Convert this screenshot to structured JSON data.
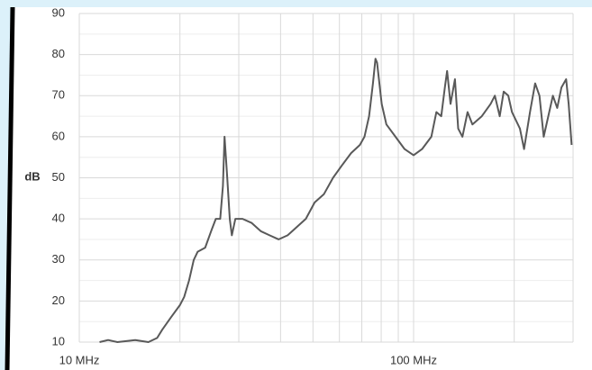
{
  "chart_data": {
    "type": "line",
    "x_scale": "log",
    "ylabel": "dB",
    "x": [
      11.5,
      12.2,
      13,
      14.7,
      16.1,
      17.1,
      17.7,
      18.8,
      20,
      20.6,
      21.3,
      22,
      22.6,
      23.8,
      24.8,
      25.6,
      26.4,
      26.9,
      27.2,
      27.7,
      28.2,
      28.6,
      29.3,
      30.8,
      32.8,
      34.9,
      37.1,
      39.5,
      42,
      44.7,
      47.6,
      50.6,
      53.9,
      57.4,
      61,
      65,
      69.1,
      71.3,
      73.6,
      75.6,
      76.9,
      77.8,
      80.3,
      82.9,
      88.3,
      94,
      100,
      106,
      113,
      117,
      121,
      124,
      126,
      129,
      133,
      136,
      140,
      145,
      150,
      160,
      170,
      175,
      181,
      186,
      192,
      197,
      208,
      214,
      223,
      231,
      238,
      245,
      253,
      261,
      269,
      277,
      286,
      291,
      297
    ],
    "series": [
      {
        "color": "#595959",
        "values": [
          10,
          10.5,
          10,
          10.5,
          10,
          11,
          13,
          16,
          19,
          21,
          25,
          30,
          32,
          33,
          37,
          40,
          40,
          48,
          60,
          50,
          40,
          36,
          40,
          40,
          39,
          37,
          36,
          35,
          36,
          38,
          40,
          44,
          46,
          50,
          53,
          56,
          58,
          60,
          65,
          73,
          79,
          78,
          68,
          63,
          60,
          57,
          55.5,
          57,
          60,
          66,
          65,
          72,
          76,
          68,
          74,
          62,
          60,
          66,
          63,
          65,
          68,
          70,
          65,
          71,
          70,
          66,
          62,
          57,
          66,
          73,
          70,
          60,
          65,
          70,
          67,
          72,
          74,
          68,
          58
        ]
      }
    ],
    "xlim": [
      10,
      300
    ],
    "xticks": [
      {
        "value": 10,
        "label": "10 MHz"
      },
      {
        "value": 100,
        "label": "100 MHz"
      }
    ],
    "x_minor_ticks": [
      20,
      30,
      40,
      50,
      60,
      70,
      80,
      90,
      200,
      300
    ],
    "ylim": [
      10,
      90
    ],
    "yticks": [
      10,
      20,
      30,
      40,
      50,
      60,
      70,
      80,
      90
    ],
    "y_minor_ticks": [
      15,
      25,
      35,
      45,
      55,
      65,
      75,
      85
    ],
    "grid": true
  }
}
